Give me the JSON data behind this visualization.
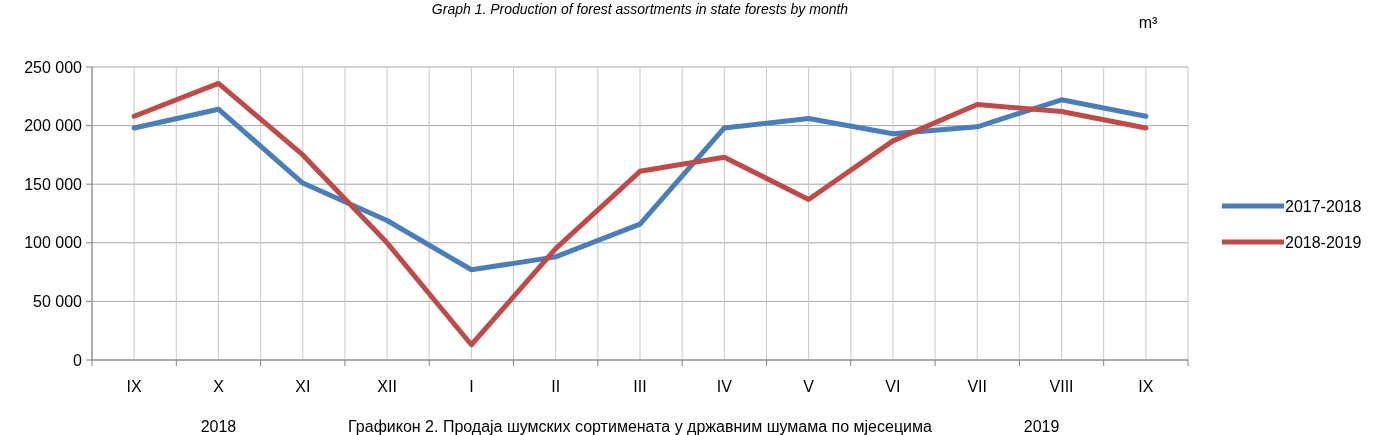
{
  "chart_data": {
    "type": "line",
    "title": "Graph 1. Production of forest assortments in state forests by month",
    "categories": [
      "IX",
      "X",
      "XI",
      "XII",
      "I",
      "II",
      "III",
      "IV",
      "V",
      "VI",
      "VII",
      "VIII",
      "IX"
    ],
    "series": [
      {
        "name": "2017-2018",
        "color": "#4a7ebb",
        "values": [
          198000,
          214000,
          151000,
          119000,
          77000,
          88000,
          116000,
          198000,
          206000,
          193000,
          199000,
          222000,
          208000
        ]
      },
      {
        "name": "2018-2019",
        "color": "#be4b48",
        "values": [
          208000,
          236000,
          175000,
          100000,
          13000,
          95000,
          161000,
          173000,
          137000,
          187000,
          218000,
          212000,
          198000
        ]
      }
    ],
    "ylim": [
      0,
      250000
    ],
    "yticks": [
      {
        "value": 0,
        "label": "0"
      },
      {
        "value": 50000,
        "label": "50 000"
      },
      {
        "value": 100000,
        "label": "100 000"
      },
      {
        "value": 150000,
        "label": "150 000"
      },
      {
        "value": 200000,
        "label": "200 000"
      },
      {
        "value": 250000,
        "label": "250 000"
      }
    ],
    "grid": true,
    "legend": "right",
    "marker": "none",
    "line_style": "solid",
    "annotations": [
      "m³",
      "2018",
      "2019",
      "Графикон 2. Продаја шумских сортимената у државним шумама по мјесецима"
    ]
  }
}
